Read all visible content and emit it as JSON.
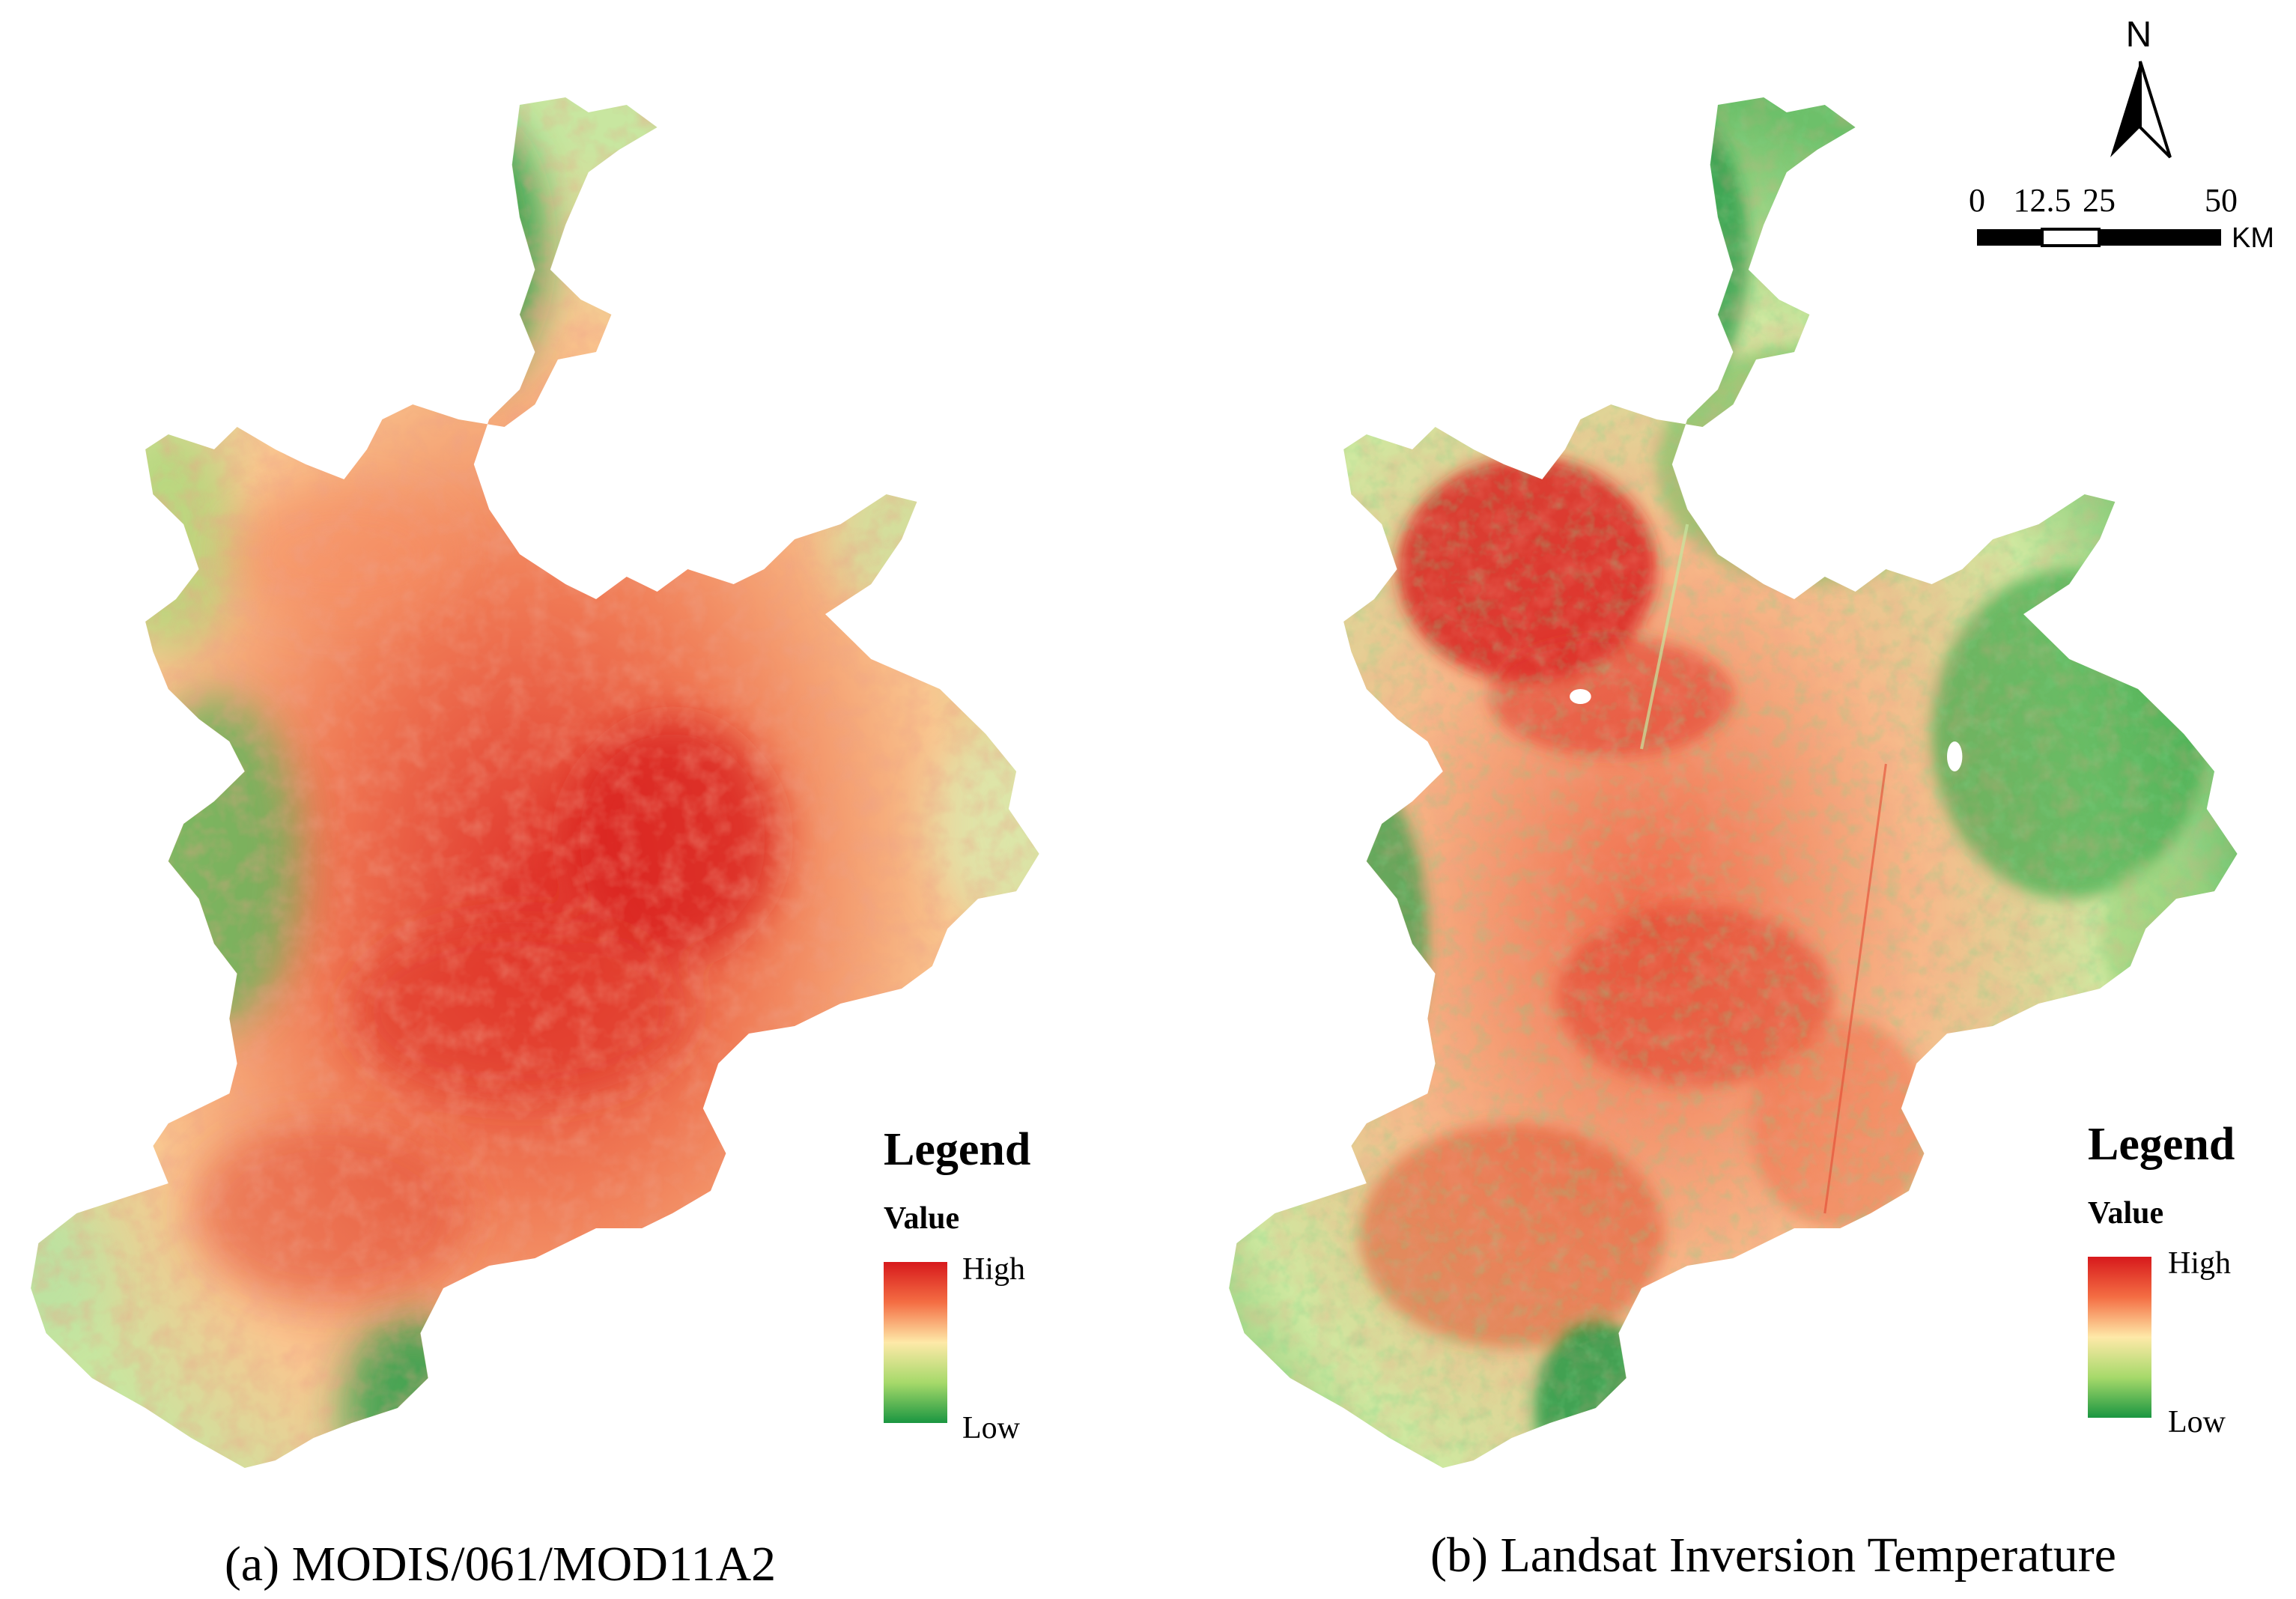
{
  "colors": {
    "high": "#d7191c",
    "mid": "#fee9a8",
    "low": "#1a9641",
    "text": "#000000"
  },
  "panels": [
    {
      "caption": "(a) MODIS/061/MOD11A2",
      "legend": {
        "title": "Legend",
        "subtitle": "Value",
        "high_label": "High",
        "low_label": "Low"
      }
    },
    {
      "caption": "(b) Landsat Inversion Temperature",
      "legend": {
        "title": "Legend",
        "subtitle": "Value",
        "high_label": "High",
        "low_label": "Low"
      }
    }
  ],
  "north_arrow": {
    "label": "N",
    "icon": "north-arrow-icon"
  },
  "scale_bar": {
    "ticks": [
      "0",
      "12.5",
      "25",
      "50"
    ],
    "unit": "KM"
  }
}
